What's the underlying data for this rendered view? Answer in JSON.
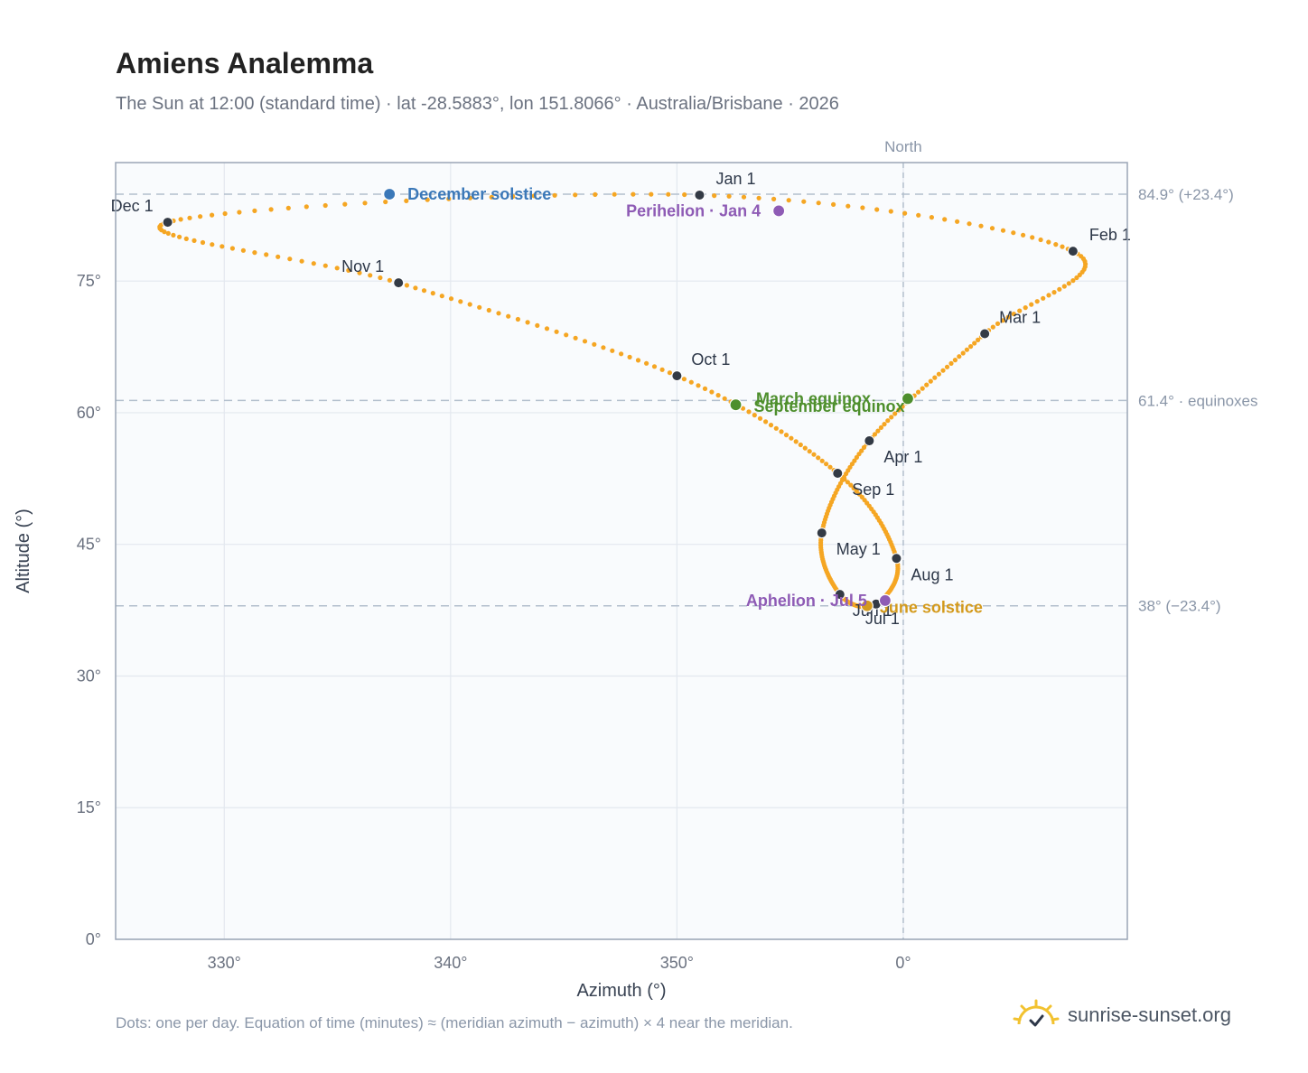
{
  "header": {
    "title": "Amiens Analemma",
    "subtitle": "The Sun at 12:00 (standard time) · lat -28.5883°, lon 151.8066° · Australia/Brisbane · 2026"
  },
  "footer": {
    "note": "Dots: one per day. Equation of time (minutes) ≈ (meridian azimuth − azimuth) × 4 near the meridian.",
    "brand": "sunrise-sunset.org"
  },
  "chart_data": {
    "type": "scatter",
    "title": "Amiens Analemma",
    "xlabel": "Azimuth (°)",
    "ylabel": "Altitude (°)",
    "x_range_relative_to_north": [
      -34.8,
      9.9
    ],
    "ylim": [
      0,
      88.5
    ],
    "x_ticks": [
      {
        "value": -30,
        "label": "330°"
      },
      {
        "value": -20,
        "label": "340°"
      },
      {
        "value": -10,
        "label": "350°"
      },
      {
        "value": 0,
        "label": "0°"
      }
    ],
    "y_ticks": [
      {
        "value": 0,
        "label": "0°"
      },
      {
        "value": 15,
        "label": "15°"
      },
      {
        "value": 30,
        "label": "30°"
      },
      {
        "value": 45,
        "label": "45°"
      },
      {
        "value": 60,
        "label": "60°"
      },
      {
        "value": 75,
        "label": "75°"
      }
    ],
    "grid": true,
    "meridian": {
      "azimuth": 0,
      "label": "North"
    },
    "reference_lines": [
      {
        "altitude": 84.9,
        "label": "84.9° (+23.4°)"
      },
      {
        "altitude": 61.4,
        "label": "61.4° · equinoxes"
      },
      {
        "altitude": 38.0,
        "label": "38° (−23.4°)"
      }
    ],
    "series_color": "#f5a623",
    "month_markers": [
      {
        "label": "Jan 1",
        "az": -9.0,
        "alt": 84.8
      },
      {
        "label": "Feb 1",
        "az": 7.5,
        "alt": 78.4
      },
      {
        "label": "Mar 1",
        "az": 3.6,
        "alt": 69.0
      },
      {
        "label": "Apr 1",
        "az": -1.5,
        "alt": 56.8
      },
      {
        "label": "May 1",
        "az": -3.6,
        "alt": 46.3
      },
      {
        "label": "Jun 1",
        "az": -2.8,
        "alt": 39.3
      },
      {
        "label": "Jul 1",
        "az": -1.2,
        "alt": 38.2
      },
      {
        "label": "Aug 1",
        "az": -0.3,
        "alt": 43.4
      },
      {
        "label": "Sep 1",
        "az": -2.9,
        "alt": 53.1
      },
      {
        "label": "Oct 1",
        "az": -10.0,
        "alt": 64.2
      },
      {
        "label": "Nov 1",
        "az": -22.3,
        "alt": 74.8
      },
      {
        "label": "Dec 1",
        "az": -32.5,
        "alt": 81.7
      }
    ],
    "events": [
      {
        "label": "December solstice",
        "az": -22.7,
        "alt": 84.9,
        "color": "#3b78b8"
      },
      {
        "label": "Perihelion · Jan 4",
        "az": -5.5,
        "alt": 83.0,
        "color": "#8e5bb5"
      },
      {
        "label": "March equinox",
        "az": 0.2,
        "alt": 61.6,
        "color": "#4e8f2d"
      },
      {
        "label": "September equinox",
        "az": -7.4,
        "alt": 60.9,
        "color": "#4e8f2d"
      },
      {
        "label": "June solstice",
        "az": -1.6,
        "alt": 38.0,
        "color": "#d49a1c"
      },
      {
        "label": "Aphelion · Jul 5",
        "az": -0.8,
        "alt": 38.6,
        "color": "#8e5bb5"
      }
    ]
  }
}
